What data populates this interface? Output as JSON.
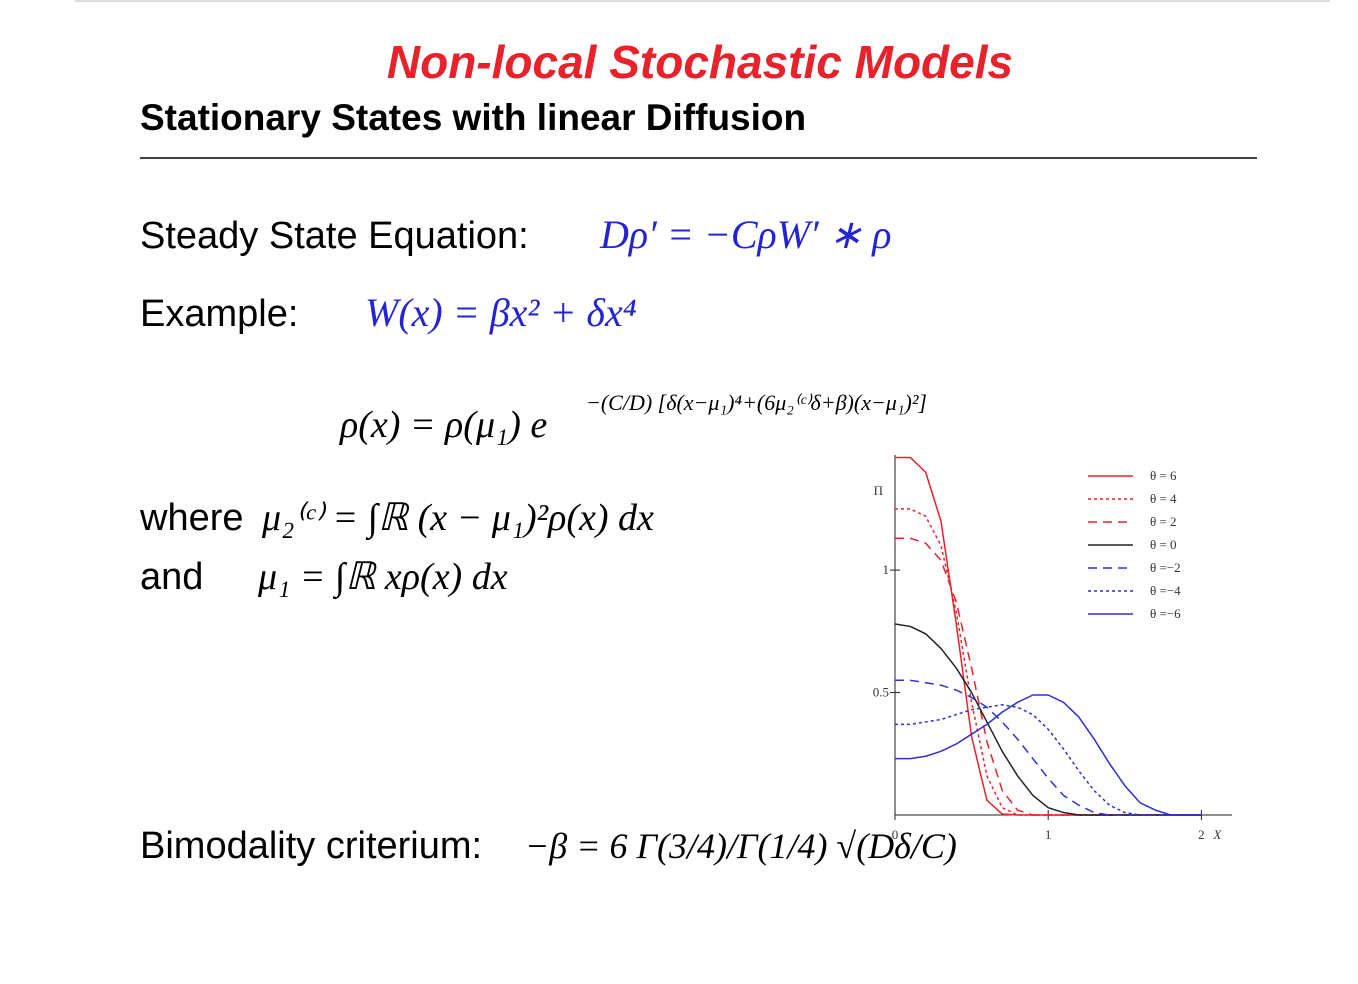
{
  "slide": {
    "title": "Non-local Stochastic Models",
    "subtitle": "Stationary States with linear Diffusion",
    "steady_label": "Steady State Equation:",
    "steady_formula": "Dρ′ = −CρW′ ∗ ρ",
    "example_label": "Example:",
    "example_formula": "W(x) = βx² + δx⁴",
    "rho_formula": "ρ(x) = ρ(μ₁) e",
    "rho_exponent": "−(C/D) [δ(x−μ₁)⁴+(6μ₂⁽ᶜ⁾δ+β)(x−μ₁)²]",
    "where_label": "where",
    "where_formula": "μ₂⁽ᶜ⁾ = ∫ℝ (x − μ₁)²ρ(x) dx",
    "and_label": "and",
    "and_formula": "μ₁ = ∫ℝ xρ(x) dx",
    "bimodality_label": "Bimodality criterium:",
    "bimodality_formula": "−β = 6 Γ(3/4)/Γ(1/4) √(Dδ/C)"
  },
  "chart_data": {
    "type": "line",
    "x_label": "X",
    "y_label": "Π",
    "x": [
      0,
      0.1,
      0.2,
      0.3,
      0.4,
      0.5,
      0.6,
      0.7,
      0.8,
      0.9,
      1.0,
      1.1,
      1.2,
      1.3,
      1.4,
      1.5,
      1.6,
      1.7,
      1.8,
      1.9,
      2.0
    ],
    "xlim": [
      0,
      2.2
    ],
    "ylim": [
      0,
      1.47
    ],
    "xticks": [
      0,
      1,
      2
    ],
    "yticks": [
      0.5,
      1
    ],
    "series": [
      {
        "name": "θ = 6",
        "color": "#e8222b",
        "dash": "solid",
        "values": [
          1.46,
          1.46,
          1.4,
          1.2,
          0.78,
          0.32,
          0.06,
          0.004,
          0,
          0,
          0,
          0,
          0,
          0,
          0,
          0,
          0,
          0,
          0,
          0,
          0
        ]
      },
      {
        "name": "θ = 4",
        "color": "#e8222b",
        "dash": "dotted",
        "values": [
          1.25,
          1.25,
          1.22,
          1.1,
          0.83,
          0.46,
          0.16,
          0.03,
          0,
          0,
          0,
          0,
          0,
          0,
          0,
          0,
          0,
          0,
          0,
          0,
          0
        ]
      },
      {
        "name": "θ = 2",
        "color": "#e8222b",
        "dash": "dashed",
        "values": [
          1.13,
          1.13,
          1.11,
          1.04,
          0.87,
          0.6,
          0.3,
          0.1,
          0.02,
          0,
          0,
          0,
          0,
          0,
          0,
          0,
          0,
          0,
          0,
          0,
          0
        ]
      },
      {
        "name": "θ = 0",
        "color": "#222222",
        "dash": "solid",
        "values": [
          0.78,
          0.77,
          0.74,
          0.68,
          0.6,
          0.5,
          0.38,
          0.26,
          0.16,
          0.08,
          0.03,
          0.01,
          0,
          0,
          0,
          0,
          0,
          0,
          0,
          0,
          0
        ]
      },
      {
        "name": "θ =−2",
        "color": "#2f2fd8",
        "dash": "dashed",
        "values": [
          0.55,
          0.55,
          0.54,
          0.53,
          0.51,
          0.48,
          0.44,
          0.38,
          0.31,
          0.23,
          0.15,
          0.08,
          0.04,
          0.01,
          0,
          0,
          0,
          0,
          0,
          0,
          0
        ]
      },
      {
        "name": "θ =−4",
        "color": "#2f2fd8",
        "dash": "dotted",
        "values": [
          0.37,
          0.37,
          0.38,
          0.39,
          0.41,
          0.43,
          0.44,
          0.45,
          0.44,
          0.41,
          0.35,
          0.27,
          0.18,
          0.1,
          0.04,
          0.01,
          0,
          0,
          0,
          0,
          0
        ]
      },
      {
        "name": "θ =−6",
        "color": "#2f2fd8",
        "dash": "solid",
        "values": [
          0.23,
          0.23,
          0.24,
          0.26,
          0.29,
          0.33,
          0.37,
          0.42,
          0.46,
          0.49,
          0.49,
          0.46,
          0.4,
          0.31,
          0.21,
          0.12,
          0.05,
          0.02,
          0,
          0,
          0
        ]
      }
    ]
  }
}
